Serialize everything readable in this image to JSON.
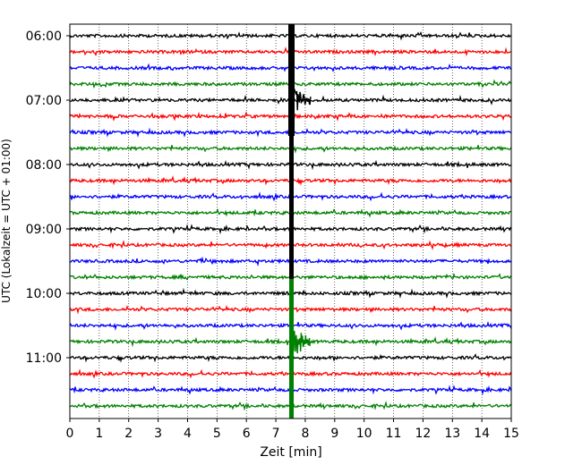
{
  "chart_data": {
    "type": "line",
    "title": "",
    "xlabel": "Zeit  [min]",
    "ylabel": "UTC (Lokalzeit = UTC + 01:00)",
    "xlim": [
      0,
      15
    ],
    "x_ticks": [
      0,
      1,
      2,
      3,
      4,
      5,
      6,
      7,
      8,
      9,
      10,
      11,
      12,
      13,
      14,
      15
    ],
    "x_tick_labels": [
      "0",
      "1",
      "2",
      "3",
      "4",
      "5",
      "6",
      "7",
      "8",
      "9",
      "10",
      "11",
      "12",
      "13",
      "14",
      "15"
    ],
    "y_tick_labels": [
      "06:00",
      "07:00",
      "08:00",
      "09:00",
      "10:00",
      "11:00"
    ],
    "grid": "vertical-dotted",
    "trace_interval_min": 15,
    "color_cycle": [
      "#000000",
      "#ff0000",
      "#0000ff",
      "#008000"
    ],
    "series": [
      {
        "start": "06:00",
        "color": "#000000"
      },
      {
        "start": "06:15",
        "color": "#ff0000"
      },
      {
        "start": "06:30",
        "color": "#0000ff"
      },
      {
        "start": "06:45",
        "color": "#008000"
      },
      {
        "start": "07:00",
        "color": "#000000"
      },
      {
        "start": "07:15",
        "color": "#ff0000"
      },
      {
        "start": "07:30",
        "color": "#0000ff"
      },
      {
        "start": "07:45",
        "color": "#008000"
      },
      {
        "start": "08:00",
        "color": "#000000"
      },
      {
        "start": "08:15",
        "color": "#ff0000"
      },
      {
        "start": "08:30",
        "color": "#0000ff"
      },
      {
        "start": "08:45",
        "color": "#008000"
      },
      {
        "start": "09:00",
        "color": "#000000"
      },
      {
        "start": "09:15",
        "color": "#ff0000"
      },
      {
        "start": "09:30",
        "color": "#0000ff"
      },
      {
        "start": "09:45",
        "color": "#008000"
      },
      {
        "start": "10:00",
        "color": "#000000"
      },
      {
        "start": "10:15",
        "color": "#ff0000"
      },
      {
        "start": "10:30",
        "color": "#0000ff"
      },
      {
        "start": "10:45",
        "color": "#008000"
      },
      {
        "start": "11:00",
        "color": "#000000"
      },
      {
        "start": "11:15",
        "color": "#ff0000"
      },
      {
        "start": "11:30",
        "color": "#0000ff"
      },
      {
        "start": "11:45",
        "color": "#008000"
      }
    ],
    "events": [
      {
        "start": "07:00",
        "onset_min": 7.5,
        "coda_end_min": 8.2,
        "color": "#000000"
      },
      {
        "start": "10:45",
        "onset_min": 7.5,
        "coda_end_min": 8.2,
        "color": "#008000"
      }
    ]
  }
}
